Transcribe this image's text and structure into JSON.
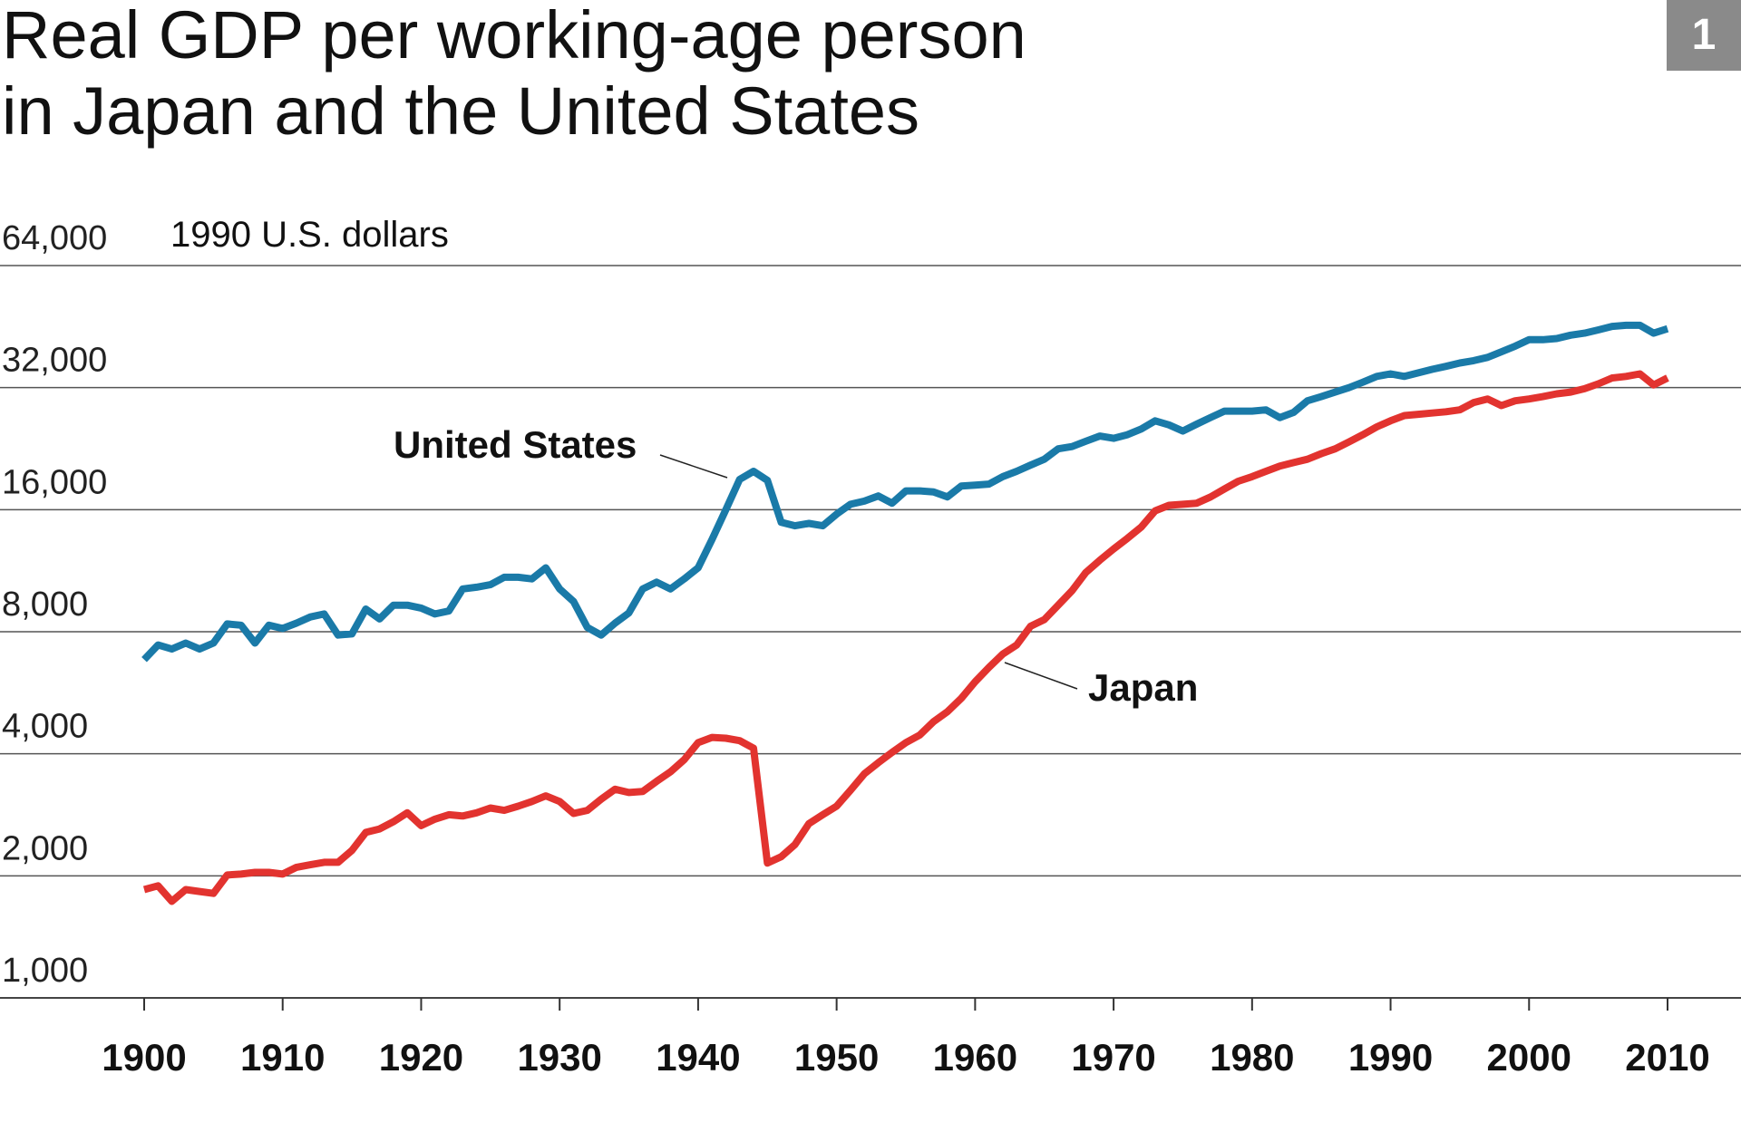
{
  "badge": "1",
  "chart_data": {
    "type": "line",
    "title": [
      "Real GDP per working-age person",
      "in Japan and the United States"
    ],
    "y_label": "1990 U.S. dollars",
    "log_scale_y": true,
    "grid": true,
    "x": [
      1900,
      1901,
      1902,
      1903,
      1904,
      1905,
      1906,
      1907,
      1908,
      1909,
      1910,
      1911,
      1912,
      1913,
      1914,
      1915,
      1916,
      1917,
      1918,
      1919,
      1920,
      1921,
      1922,
      1923,
      1924,
      1925,
      1926,
      1927,
      1928,
      1929,
      1930,
      1931,
      1932,
      1933,
      1934,
      1935,
      1936,
      1937,
      1938,
      1939,
      1940,
      1941,
      1942,
      1943,
      1944,
      1945,
      1946,
      1947,
      1948,
      1949,
      1950,
      1951,
      1952,
      1953,
      1954,
      1955,
      1956,
      1957,
      1958,
      1959,
      1960,
      1961,
      1962,
      1963,
      1964,
      1965,
      1966,
      1967,
      1968,
      1969,
      1970,
      1971,
      1972,
      1973,
      1974,
      1975,
      1976,
      1977,
      1978,
      1979,
      1980,
      1981,
      1982,
      1983,
      1984,
      1985,
      1986,
      1987,
      1988,
      1989,
      1990,
      1991,
      1992,
      1993,
      1994,
      1995,
      1996,
      1997,
      1998,
      1999,
      2000,
      2001,
      2002,
      2003,
      2004,
      2005,
      2006,
      2007,
      2008,
      2009,
      2010
    ],
    "series": [
      {
        "name": "United States",
        "color": "#1a7aa8",
        "values": [
          6830,
          7420,
          7250,
          7500,
          7250,
          7500,
          8360,
          8300,
          7500,
          8300,
          8150,
          8400,
          8700,
          8850,
          7850,
          7900,
          9100,
          8600,
          9300,
          9300,
          9150,
          8850,
          9000,
          10200,
          10300,
          10450,
          10900,
          10900,
          10800,
          11500,
          10200,
          9500,
          8200,
          7850,
          8400,
          8900,
          10200,
          10600,
          10200,
          10800,
          11500,
          13500,
          16000,
          19000,
          19900,
          18900,
          14900,
          14600,
          14800,
          14600,
          15600,
          16500,
          16800,
          17300,
          16600,
          17800,
          17800,
          17700,
          17200,
          18300,
          18400,
          18500,
          19300,
          19900,
          20600,
          21300,
          22600,
          22900,
          23600,
          24300,
          24000,
          24500,
          25300,
          26500,
          25900,
          25000,
          26000,
          27000,
          28000,
          28000,
          28000,
          28200,
          27000,
          27800,
          29700,
          30400,
          31200,
          32000,
          33000,
          34100,
          34600,
          34100,
          34800,
          35500,
          36100,
          36800,
          37300,
          38000,
          39200,
          40500,
          42000,
          42000,
          42300,
          43100,
          43600,
          44400,
          45300,
          45600,
          45600,
          43600,
          44700
        ]
      },
      {
        "name": "Japan",
        "color": "#e2332f",
        "values": [
          1850,
          1890,
          1730,
          1850,
          1830,
          1810,
          2010,
          2020,
          2040,
          2040,
          2020,
          2100,
          2130,
          2160,
          2160,
          2310,
          2560,
          2610,
          2720,
          2860,
          2660,
          2760,
          2830,
          2810,
          2860,
          2940,
          2900,
          2970,
          3050,
          3150,
          3050,
          2850,
          2900,
          3090,
          3270,
          3210,
          3230,
          3420,
          3610,
          3870,
          4260,
          4390,
          4370,
          4310,
          4130,
          2150,
          2230,
          2390,
          2690,
          2830,
          2970,
          3250,
          3570,
          3800,
          4030,
          4260,
          4450,
          4800,
          5080,
          5480,
          6020,
          6530,
          7050,
          7420,
          8250,
          8570,
          9300,
          10100,
          11200,
          12000,
          12800,
          13600,
          14500,
          15900,
          16400,
          16500,
          16600,
          17200,
          18000,
          18800,
          19300,
          19900,
          20500,
          20900,
          21300,
          22000,
          22600,
          23500,
          24500,
          25600,
          26500,
          27300,
          27500,
          27700,
          27900,
          28200,
          29400,
          30000,
          28900,
          29700,
          30000,
          30400,
          30900,
          31200,
          31800,
          32700,
          33800,
          34100,
          34600,
          32500,
          33800
        ]
      }
    ],
    "xlim": [
      1900,
      2010
    ],
    "xticks": [
      1900,
      1910,
      1920,
      1930,
      1940,
      1950,
      1960,
      1970,
      1980,
      1990,
      2000,
      2010
    ],
    "ylim": [
      1000,
      64000
    ],
    "yticks": [
      {
        "value": 1000,
        "label": "1,000"
      },
      {
        "value": 2000,
        "label": "2,000"
      },
      {
        "value": 4000,
        "label": "4,000"
      },
      {
        "value": 8000,
        "label": "8,000"
      },
      {
        "value": 16000,
        "label": "16,000"
      },
      {
        "value": 32000,
        "label": "32,000"
      },
      {
        "value": 64000,
        "label": "64,000"
      }
    ]
  }
}
